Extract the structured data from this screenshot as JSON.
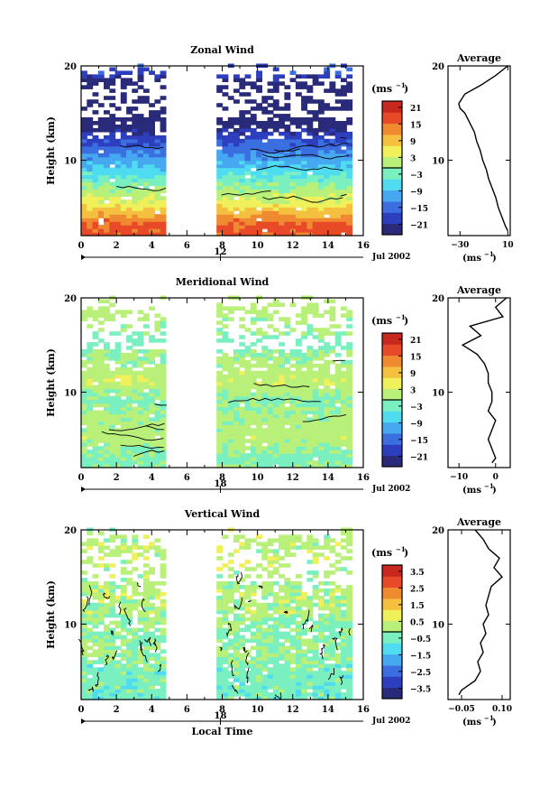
{
  "panels": [
    {
      "title": "Zonal Wind",
      "ylabel": "Height (km)",
      "yticks": [
        "20",
        "10"
      ],
      "xticks": [
        "0",
        "2",
        "4",
        "6",
        "8",
        "10",
        "12",
        "14",
        "16"
      ],
      "date_day": "12",
      "date_label": "Jul 2002",
      "colorbar_unit": "(ms",
      "colorbar_sup": "−1",
      "colorbar_ticks": [
        "21",
        "15",
        "9",
        "3",
        "−3",
        "−9",
        "−15",
        "−21"
      ],
      "avg_title": "Average",
      "avg_xticks": [
        "−30",
        "10"
      ],
      "avg_yticks": [
        "20",
        "10"
      ],
      "avg_unit": "(ms",
      "avg_sup": "−1"
    },
    {
      "title": "Meridional Wind",
      "ylabel": "Height (km)",
      "yticks": [
        "20",
        "10"
      ],
      "xticks": [
        "0",
        "2",
        "4",
        "6",
        "8",
        "10",
        "12",
        "14",
        "16"
      ],
      "date_day": "18",
      "date_label": "Jul 2002",
      "colorbar_unit": "(ms",
      "colorbar_sup": "−1",
      "colorbar_ticks": [
        "21",
        "15",
        "9",
        "3",
        "−3",
        "−9",
        "−15",
        "−21"
      ],
      "avg_title": "Average",
      "avg_xticks": [
        "−10",
        "0"
      ],
      "avg_yticks": [
        "20",
        "10"
      ],
      "avg_unit": "(ms",
      "avg_sup": "−1"
    },
    {
      "title": "Vertical Wind",
      "ylabel": "Height (km)",
      "yticks": [
        "20",
        "10"
      ],
      "xticks": [
        "0",
        "2",
        "4",
        "6",
        "8",
        "10",
        "12",
        "14",
        "16"
      ],
      "date_day": "18",
      "date_label": "Jul 2002",
      "xlabel": "Local Time",
      "colorbar_unit": "(ms",
      "colorbar_sup": "−1",
      "colorbar_ticks": [
        "3.5",
        "2.5",
        "1.5",
        "0.5",
        "−0.5",
        "−1.5",
        "−2.5",
        "−3.5"
      ],
      "avg_title": "Average",
      "avg_xticks": [
        "−0.05",
        "0.10"
      ],
      "avg_yticks": [
        "20",
        "10"
      ],
      "avg_unit": "(ms",
      "avg_sup": "−1"
    }
  ],
  "chart_data": [
    {
      "type": "heatmap",
      "title": "Zonal Wind",
      "xlabel": "",
      "ylabel": "Height (km)",
      "xlim": [
        0,
        16
      ],
      "ylim": [
        2,
        20
      ],
      "data_gap_hours": [
        5,
        7.5
      ],
      "data_end_hour": 15.3,
      "colorbar": {
        "unit": "ms^-1",
        "ticks": [
          21,
          15,
          9,
          3,
          -3,
          -9,
          -15,
          -21
        ]
      },
      "heights": [
        3,
        5,
        7,
        9,
        11,
        13,
        15,
        17,
        19
      ],
      "values": [
        15,
        6,
        0,
        -6,
        -12,
        -18,
        -24,
        -27,
        -15
      ],
      "average_profile": {
        "title": "Average",
        "xlim": [
          -40,
          12
        ],
        "xticks": [
          -30,
          10
        ],
        "height": [
          2.5,
          3,
          4,
          5,
          6,
          7,
          8,
          9,
          10,
          11,
          12,
          13,
          14,
          15,
          15.5,
          16,
          17,
          18,
          19,
          20
        ],
        "value": [
          10,
          8,
          5,
          2,
          0,
          -3,
          -6,
          -8,
          -11,
          -13,
          -16,
          -18,
          -22,
          -26,
          -30,
          -31,
          -26,
          -12,
          0,
          10
        ]
      }
    },
    {
      "type": "heatmap",
      "title": "Meridional Wind",
      "xlabel": "",
      "ylabel": "Height (km)",
      "xlim": [
        0,
        16
      ],
      "ylim": [
        2,
        20
      ],
      "data_gap_hours": [
        5,
        7.5
      ],
      "data_end_hour": 15.3,
      "colorbar": {
        "unit": "ms^-1",
        "ticks": [
          21,
          15,
          9,
          3,
          -3,
          -9,
          -15,
          -21
        ]
      },
      "heights": [
        3,
        5,
        7,
        9,
        11,
        13,
        15,
        17,
        19
      ],
      "values": [
        -1,
        2,
        1,
        -1,
        3,
        1,
        -2,
        1,
        2
      ],
      "average_profile": {
        "title": "Average",
        "xlim": [
          -13,
          4
        ],
        "xticks": [
          -10,
          0
        ],
        "height": [
          2.5,
          3,
          4,
          5,
          6,
          7,
          8,
          9,
          10,
          11,
          12,
          13,
          14,
          15,
          16,
          17,
          18,
          19,
          20
        ],
        "value": [
          -1,
          0,
          -1,
          -2,
          -1,
          0,
          -2,
          -1,
          -1,
          -2,
          -2,
          -3,
          -5,
          -9,
          -4,
          -7,
          2,
          0,
          3
        ]
      }
    },
    {
      "type": "heatmap",
      "title": "Vertical Wind",
      "xlabel": "Local Time",
      "ylabel": "Height (km)",
      "xlim": [
        0,
        16
      ],
      "ylim": [
        2,
        20
      ],
      "data_gap_hours": [
        5,
        7.5
      ],
      "data_end_hour": 15.3,
      "colorbar": {
        "unit": "ms^-1",
        "ticks": [
          3.5,
          2.5,
          1.5,
          0.5,
          -0.5,
          -1.5,
          -2.5,
          -3.5
        ]
      },
      "heights": [
        3,
        5,
        7,
        9,
        11,
        13,
        15,
        17,
        19
      ],
      "values": [
        -0.3,
        -0.3,
        0.1,
        -0.2,
        0.2,
        0.3,
        0.2,
        0.4,
        0.3
      ],
      "average_profile": {
        "title": "Average",
        "xlim": [
          -0.1,
          0.13
        ],
        "xticks": [
          -0.05,
          0.1
        ],
        "height": [
          2.5,
          3,
          4,
          5,
          6,
          7,
          8,
          9,
          10,
          11,
          12,
          13,
          14,
          15,
          16,
          17,
          18,
          19,
          20
        ],
        "value": [
          -0.06,
          -0.05,
          0.0,
          0.02,
          0.01,
          0.03,
          0.02,
          0.04,
          0.03,
          0.05,
          0.04,
          0.05,
          0.06,
          0.1,
          0.07,
          0.09,
          0.05,
          0.03,
          0.0
        ]
      }
    }
  ]
}
